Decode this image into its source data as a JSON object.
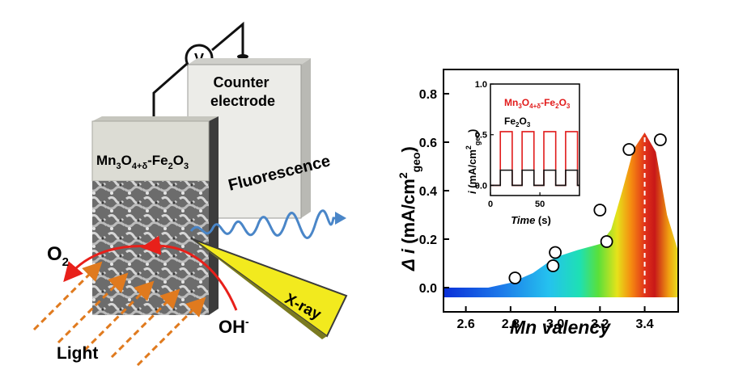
{
  "schematic": {
    "voltmeter_symbol": "V",
    "counter_electrode_label": [
      "Counter",
      "electrode"
    ],
    "sample_label": {
      "prefix": "Mn",
      "sub1": "3",
      "mid": "O",
      "sub2": "4+δ",
      "suffix": "-Fe",
      "sub3": "2",
      "end": "O",
      "sub4": "3"
    },
    "fluorescence_label": "Fluorescence",
    "xray_label": "X-ray",
    "o2_label": {
      "base": "O",
      "sub": "2"
    },
    "oh_label": {
      "base": "OH",
      "sup": "-"
    },
    "light_label": "Light",
    "colors": {
      "counter_face": "#e8e8e4",
      "sample_top": "#d8d8d0",
      "arrow_red": "#e8201a",
      "light_orange": "#e07a1e",
      "fluorescence_blue": "#4a86c8",
      "xray_yellow": "#f2ea1e"
    }
  },
  "chart_data": [
    {
      "type": "scatter",
      "title": "",
      "xlabel": "Mn valency",
      "ylabel": {
        "prefix": "Δ",
        "italic": "i",
        "unit": "(mA/cm",
        "sup": "2",
        "sub": "geo",
        "close": ")"
      },
      "xlim": [
        2.5,
        3.55
      ],
      "ylim": [
        -0.1,
        0.9
      ],
      "xticks": [
        "2.6",
        "2.8",
        "3.0",
        "3.2",
        "3.4"
      ],
      "yticks": [
        "0.0",
        "0.2",
        "0.4",
        "0.6",
        "0.8"
      ],
      "points": [
        {
          "x": 2.82,
          "y": 0.04
        },
        {
          "x": 2.99,
          "y": 0.09
        },
        {
          "x": 3.0,
          "y": 0.145
        },
        {
          "x": 3.2,
          "y": 0.32
        },
        {
          "x": 3.23,
          "y": 0.19
        },
        {
          "x": 3.33,
          "y": 0.57
        },
        {
          "x": 3.47,
          "y": 0.61
        }
      ],
      "envelope": [
        {
          "x": 2.5,
          "y": 0.0
        },
        {
          "x": 2.7,
          "y": 0.0
        },
        {
          "x": 2.8,
          "y": 0.02
        },
        {
          "x": 2.9,
          "y": 0.06
        },
        {
          "x": 3.0,
          "y": 0.125
        },
        {
          "x": 3.1,
          "y": 0.155
        },
        {
          "x": 3.2,
          "y": 0.18
        },
        {
          "x": 3.25,
          "y": 0.24
        },
        {
          "x": 3.3,
          "y": 0.4
        },
        {
          "x": 3.35,
          "y": 0.57
        },
        {
          "x": 3.4,
          "y": 0.64
        },
        {
          "x": 3.45,
          "y": 0.56
        },
        {
          "x": 3.5,
          "y": 0.3
        },
        {
          "x": 3.55,
          "y": 0.15
        }
      ],
      "peak_marker_x": 3.4,
      "grid": false
    },
    {
      "type": "line",
      "title": "",
      "xlabel": "Time (s)",
      "ylabel": {
        "italic": "i",
        "unit": " (mA/cm",
        "sup": "2",
        "sub": "geo",
        "close": ")"
      },
      "xlim": [
        0,
        90
      ],
      "ylim": [
        -0.1,
        1.0
      ],
      "xticks": [
        "0",
        "50"
      ],
      "yticks": [
        "0.0",
        "0.5",
        "1.0"
      ],
      "legend_placement": "top-left",
      "series": [
        {
          "name": {
            "prefix": "Mn",
            "sub1": "3",
            "mid": "O",
            "sub2": "4+δ",
            "suffix": "-Fe",
            "sub3": "2",
            "end": "O",
            "sub4": "3"
          },
          "color": "#e11b1b",
          "on_intervals": [
            [
              10,
              22
            ],
            [
              32,
              44
            ],
            [
              54,
              66
            ],
            [
              76,
              88
            ]
          ],
          "high": 0.53,
          "low": 0.0
        },
        {
          "name": {
            "prefix": "Fe",
            "sub1": "2",
            "mid": "O",
            "sub2": "3"
          },
          "color": "#111111",
          "on_intervals": [
            [
              10,
              22
            ],
            [
              32,
              44
            ],
            [
              54,
              66
            ],
            [
              76,
              88
            ]
          ],
          "high": 0.15,
          "low": 0.0
        }
      ]
    }
  ]
}
